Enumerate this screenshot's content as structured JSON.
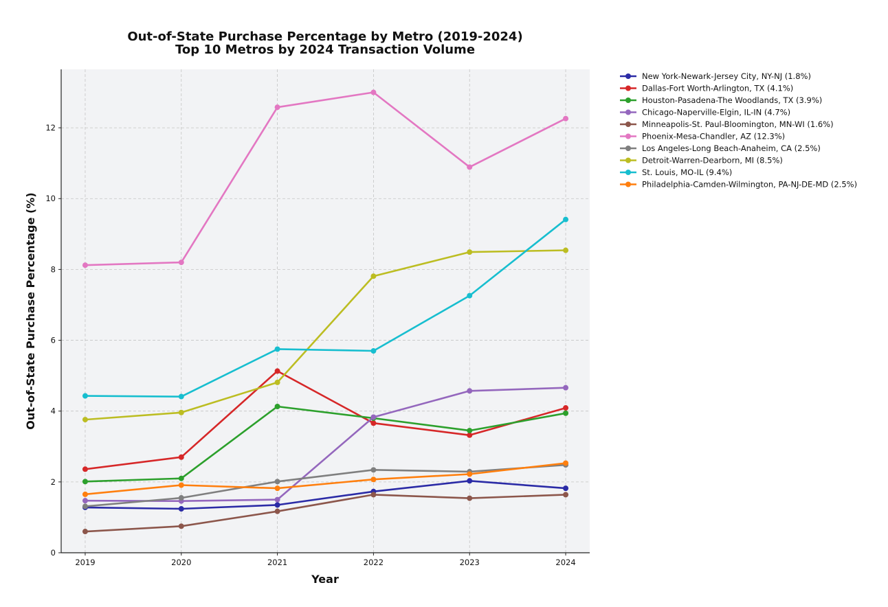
{
  "chart_data": {
    "type": "line",
    "title": "Out-of-State Purchase Percentage by Metro (2019-2024)",
    "subtitle": "Top 10 Metros by 2024 Transaction Volume",
    "xlabel": "Year",
    "ylabel": "Out-of-State Purchase Percentage (%)",
    "x": [
      2019,
      2020,
      2021,
      2022,
      2023,
      2024
    ],
    "x_ticks": [
      "2019",
      "2020",
      "2021",
      "2022",
      "2023",
      "2024"
    ],
    "xlim": [
      2018.75,
      2024.25
    ],
    "ylim": [
      0,
      13.65
    ],
    "y_ticks": [
      "0",
      "2",
      "4",
      "6",
      "8",
      "10",
      "12"
    ],
    "grid": true,
    "legend_position": "outside-right",
    "series": [
      {
        "name": "New York-Newark-Jersey City, NY-NJ (1.8%)",
        "color": "#2b2ba6",
        "values": [
          1.28,
          1.24,
          1.35,
          1.73,
          2.03,
          1.82
        ]
      },
      {
        "name": "Dallas-Fort Worth-Arlington, TX (4.1%)",
        "color": "#d62728",
        "values": [
          2.36,
          2.7,
          5.13,
          3.66,
          3.32,
          4.09
        ]
      },
      {
        "name": "Houston-Pasadena-The Woodlands, TX (3.9%)",
        "color": "#2ca02c",
        "values": [
          2.01,
          2.1,
          4.13,
          3.8,
          3.45,
          3.94
        ]
      },
      {
        "name": "Chicago-Naperville-Elgin, IL-IN (4.7%)",
        "color": "#9467bd",
        "values": [
          1.47,
          1.46,
          1.5,
          3.83,
          4.57,
          4.66
        ]
      },
      {
        "name": "Minneapolis-St. Paul-Bloomington, MN-WI (1.6%)",
        "color": "#8c564b",
        "values": [
          0.6,
          0.75,
          1.17,
          1.64,
          1.54,
          1.64
        ]
      },
      {
        "name": "Phoenix-Mesa-Chandler, AZ (12.3%)",
        "color": "#e377c2",
        "values": [
          8.12,
          8.2,
          12.58,
          13.0,
          10.89,
          12.26
        ]
      },
      {
        "name": "Los Angeles-Long Beach-Anaheim, CA (2.5%)",
        "color": "#7f7f7f",
        "values": [
          1.31,
          1.55,
          2.01,
          2.34,
          2.29,
          2.48
        ]
      },
      {
        "name": "Detroit-Warren-Dearborn, MI (8.5%)",
        "color": "#bcbd22",
        "values": [
          3.76,
          3.96,
          4.81,
          7.81,
          8.49,
          8.54
        ]
      },
      {
        "name": "St. Louis, MO-IL (9.4%)",
        "color": "#17becf",
        "values": [
          4.43,
          4.41,
          5.75,
          5.7,
          7.26,
          9.41
        ]
      },
      {
        "name": "Philadelphia-Camden-Wilmington, PA-NJ-DE-MD (2.5%)",
        "color": "#ff7f0e",
        "values": [
          1.65,
          1.91,
          1.82,
          2.07,
          2.22,
          2.53
        ]
      }
    ]
  }
}
